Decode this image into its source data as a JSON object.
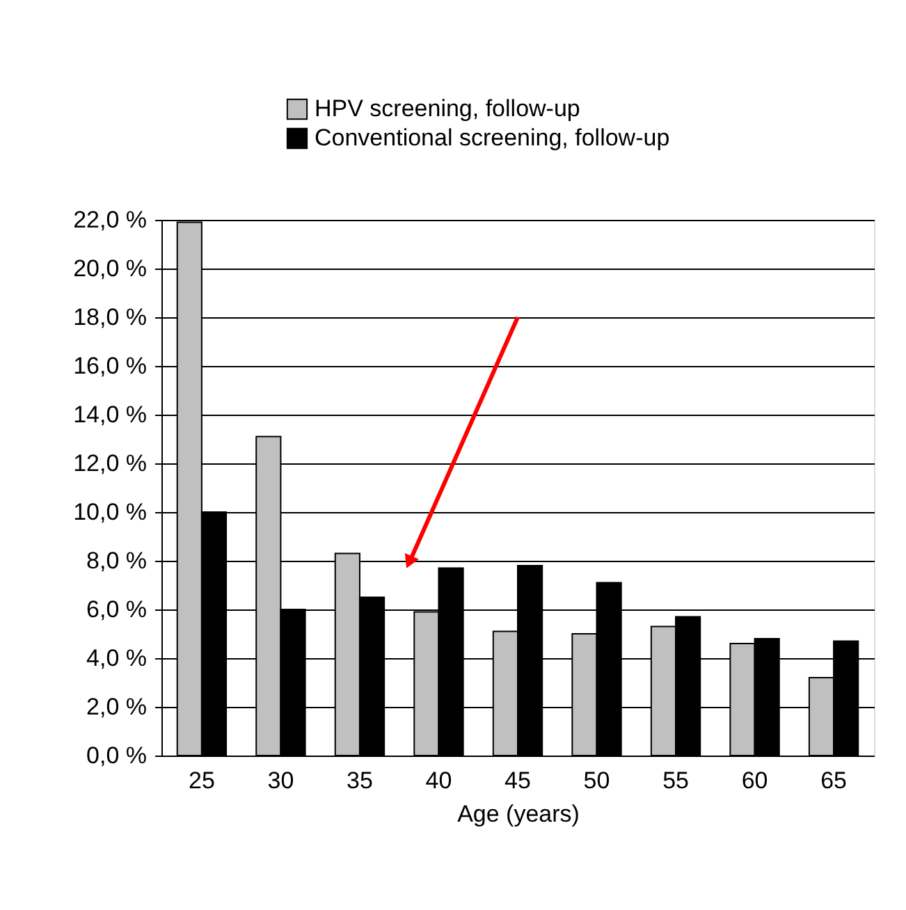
{
  "chart_data": {
    "type": "bar",
    "categories": [
      "25",
      "30",
      "35",
      "40",
      "45",
      "50",
      "55",
      "60",
      "65"
    ],
    "series": [
      {
        "name": "HPV screening, follow-up",
        "color": "#c0c0c0",
        "values": [
          21.9,
          13.1,
          8.3,
          5.9,
          5.1,
          5.0,
          5.3,
          4.6,
          3.2
        ]
      },
      {
        "name": "Conventional screening, follow-up",
        "color": "#000000",
        "values": [
          10.0,
          6.0,
          6.5,
          7.7,
          7.8,
          7.1,
          5.7,
          4.8,
          4.7
        ]
      }
    ],
    "xlabel": "Age (years)",
    "ylim": [
      0,
      22
    ],
    "yticks": [
      {
        "value": 0,
        "label": "0,0 %"
      },
      {
        "value": 2,
        "label": "2,0 %"
      },
      {
        "value": 4,
        "label": "4,0 %"
      },
      {
        "value": 6,
        "label": "6,0 %"
      },
      {
        "value": 8,
        "label": "8,0 %"
      },
      {
        "value": 10,
        "label": "10,0 %"
      },
      {
        "value": 12,
        "label": "12,0 %"
      },
      {
        "value": 14,
        "label": "14,0 %"
      },
      {
        "value": 16,
        "label": "16,0 %"
      },
      {
        "value": 18,
        "label": "18,0 %"
      },
      {
        "value": 20,
        "label": "20,0 %"
      },
      {
        "value": 22,
        "label": "22,0 %"
      }
    ],
    "grid": "y",
    "legend": "top"
  }
}
